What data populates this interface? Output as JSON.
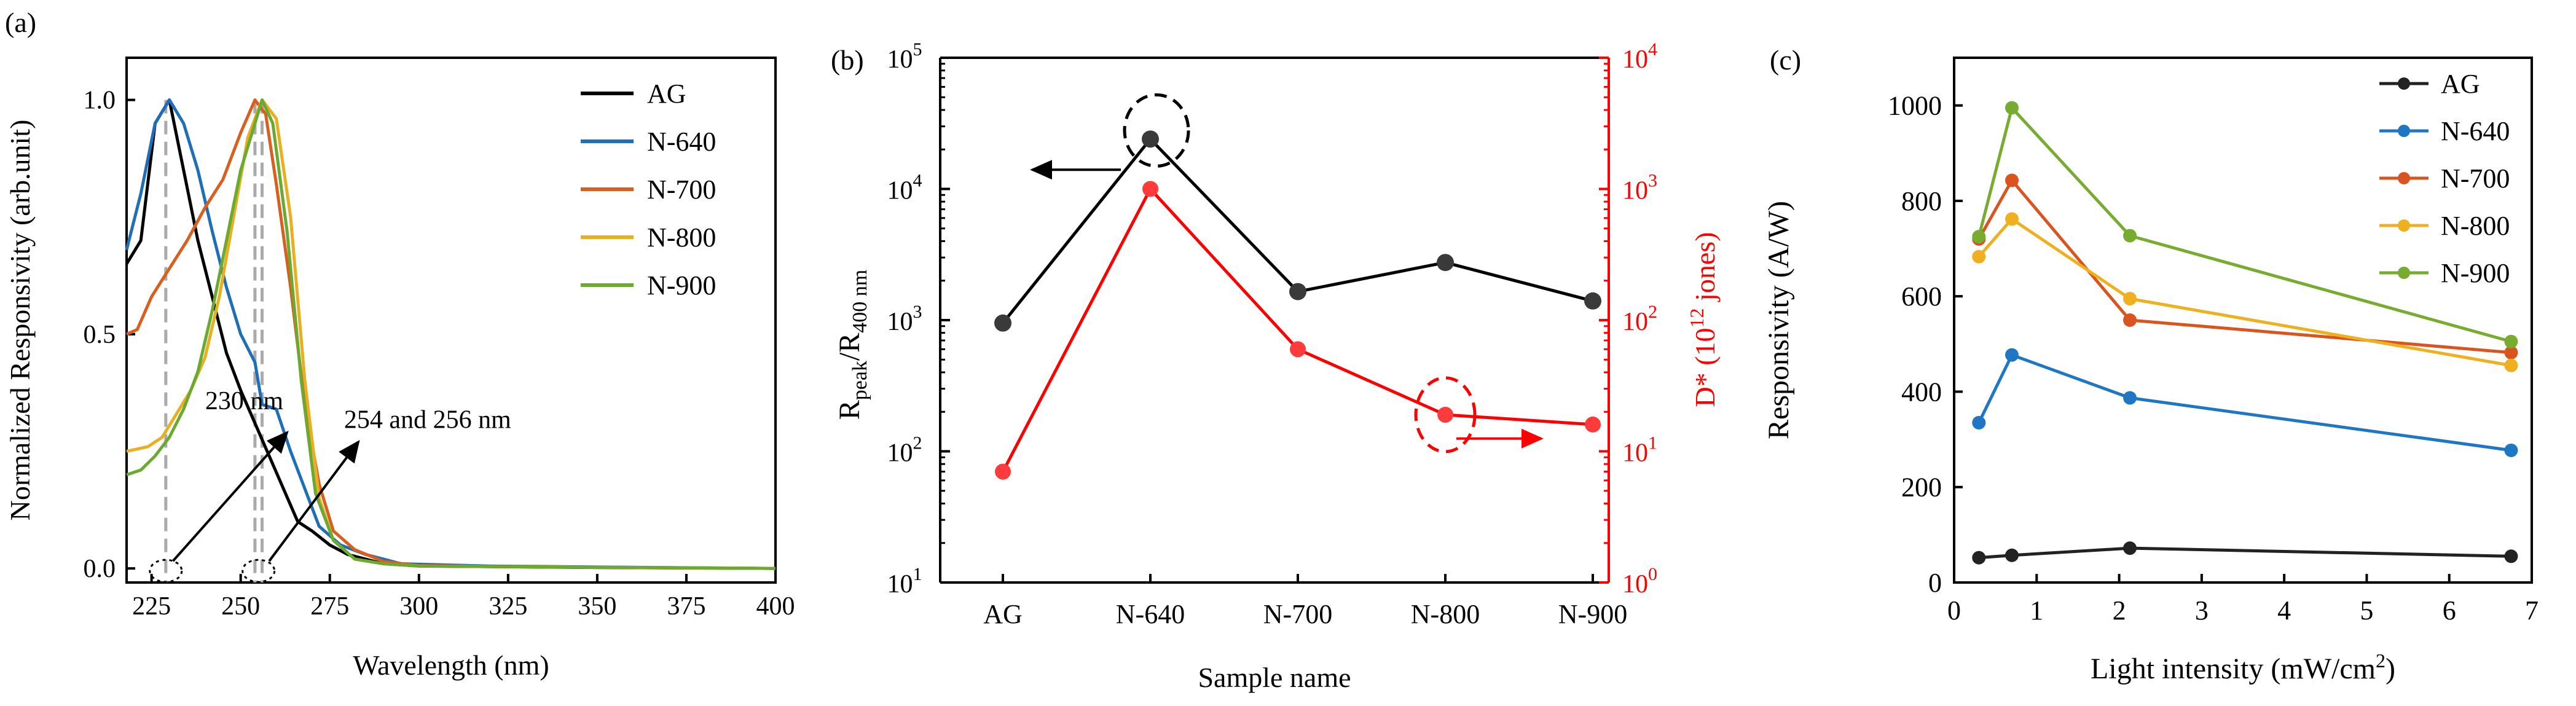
{
  "chart_data": [
    {
      "panel": "(a)",
      "type": "line",
      "xlabel": "Wavelength (nm)",
      "ylabel": "Normalized Responsivity (arb.unit)",
      "xlim": [
        218,
        400
      ],
      "ylim": [
        -0.03,
        1.09
      ],
      "xticks": [
        225,
        250,
        275,
        300,
        325,
        350,
        375,
        400
      ],
      "yticks": [
        0.0,
        0.5,
        1.0
      ],
      "ytick_labels": [
        "0.0",
        "0.5",
        "1.0"
      ],
      "legend_position": "top-right",
      "series": [
        {
          "name": "AG",
          "color": "#000000",
          "points": [
            [
              218,
              0.65
            ],
            [
              222,
              0.7
            ],
            [
              226,
              0.95
            ],
            [
              230,
              1.0
            ],
            [
              234,
              0.85
            ],
            [
              238,
              0.7
            ],
            [
              242,
              0.58
            ],
            [
              246,
              0.46
            ],
            [
              250,
              0.38
            ],
            [
              254,
              0.31
            ],
            [
              258,
              0.24
            ],
            [
              262,
              0.17
            ],
            [
              266,
              0.1
            ],
            [
              270,
              0.08
            ],
            [
              275,
              0.05
            ],
            [
              280,
              0.03
            ],
            [
              290,
              0.01
            ],
            [
              300,
              0.005
            ],
            [
              350,
              0.002
            ],
            [
              400,
              0.0
            ]
          ]
        },
        {
          "name": "N-640",
          "color": "#1f6fb8",
          "points": [
            [
              218,
              0.68
            ],
            [
              222,
              0.8
            ],
            [
              226,
              0.95
            ],
            [
              230,
              1.0
            ],
            [
              234,
              0.95
            ],
            [
              238,
              0.85
            ],
            [
              242,
              0.72
            ],
            [
              246,
              0.6
            ],
            [
              250,
              0.5
            ],
            [
              254,
              0.44
            ],
            [
              256,
              0.35
            ],
            [
              260,
              0.34
            ],
            [
              264,
              0.25
            ],
            [
              268,
              0.17
            ],
            [
              272,
              0.09
            ],
            [
              278,
              0.05
            ],
            [
              285,
              0.03
            ],
            [
              295,
              0.01
            ],
            [
              320,
              0.005
            ],
            [
              400,
              0.0
            ]
          ]
        },
        {
          "name": "N-700",
          "color": "#d95f1e",
          "points": [
            [
              218,
              0.5
            ],
            [
              221,
              0.51
            ],
            [
              225,
              0.58
            ],
            [
              230,
              0.64
            ],
            [
              235,
              0.7
            ],
            [
              240,
              0.77
            ],
            [
              245,
              0.83
            ],
            [
              250,
              0.93
            ],
            [
              254,
              1.0
            ],
            [
              257,
              0.97
            ],
            [
              260,
              0.82
            ],
            [
              264,
              0.6
            ],
            [
              268,
              0.35
            ],
            [
              272,
              0.18
            ],
            [
              276,
              0.08
            ],
            [
              282,
              0.04
            ],
            [
              290,
              0.015
            ],
            [
              300,
              0.006
            ],
            [
              350,
              0.002
            ],
            [
              400,
              0.0
            ]
          ]
        },
        {
          "name": "N-800",
          "color": "#e8b020",
          "points": [
            [
              218,
              0.25
            ],
            [
              224,
              0.26
            ],
            [
              228,
              0.28
            ],
            [
              232,
              0.33
            ],
            [
              236,
              0.38
            ],
            [
              240,
              0.45
            ],
            [
              244,
              0.58
            ],
            [
              248,
              0.75
            ],
            [
              252,
              0.92
            ],
            [
              256,
              1.0
            ],
            [
              260,
              0.96
            ],
            [
              264,
              0.75
            ],
            [
              268,
              0.4
            ],
            [
              272,
              0.15
            ],
            [
              276,
              0.06
            ],
            [
              282,
              0.02
            ],
            [
              290,
              0.01
            ],
            [
              300,
              0.005
            ],
            [
              400,
              0.0
            ]
          ]
        },
        {
          "name": "N-900",
          "color": "#6aaa30",
          "points": [
            [
              218,
              0.2
            ],
            [
              222,
              0.21
            ],
            [
              226,
              0.24
            ],
            [
              230,
              0.28
            ],
            [
              234,
              0.34
            ],
            [
              238,
              0.42
            ],
            [
              242,
              0.55
            ],
            [
              246,
              0.7
            ],
            [
              250,
              0.85
            ],
            [
              254,
              0.95
            ],
            [
              256,
              1.0
            ],
            [
              259,
              0.95
            ],
            [
              263,
              0.72
            ],
            [
              267,
              0.4
            ],
            [
              271,
              0.16
            ],
            [
              276,
              0.06
            ],
            [
              282,
              0.02
            ],
            [
              290,
              0.01
            ],
            [
              300,
              0.005
            ],
            [
              400,
              0.0
            ]
          ]
        }
      ],
      "guide_lines_nm": [
        229,
        254,
        256
      ],
      "annotations": [
        "230 nm",
        "254 and 256 nm"
      ]
    },
    {
      "panel": "(b)",
      "type": "line",
      "xlabel": "Sample name",
      "ylabel_left_main": "R",
      "ylabel_left_sub1": "peak",
      "ylabel_left_mid": "/R",
      "ylabel_left_sub2": "400 nm",
      "ylabel_right_main": "D* (10",
      "ylabel_right_sup": "12",
      "ylabel_right_end": " jones)",
      "categories": [
        "AG",
        "N-640",
        "N-700",
        "N-800",
        "N-900"
      ],
      "left_axis": {
        "scale": "log",
        "ylim": [
          10,
          100000
        ],
        "ticks": [
          {
            "base": "10",
            "exp": "1"
          },
          {
            "base": "10",
            "exp": "2"
          },
          {
            "base": "10",
            "exp": "3"
          },
          {
            "base": "10",
            "exp": "4"
          },
          {
            "base": "10",
            "exp": "5"
          }
        ]
      },
      "right_axis": {
        "scale": "log",
        "ylim": [
          1,
          10000
        ],
        "color": "#ff0000",
        "ticks": [
          {
            "base": "10",
            "exp": "0"
          },
          {
            "base": "10",
            "exp": "1"
          },
          {
            "base": "10",
            "exp": "2"
          },
          {
            "base": "10",
            "exp": "3"
          },
          {
            "base": "10",
            "exp": "4"
          }
        ]
      },
      "series": [
        {
          "name": "Rpeak/R400nm",
          "axis": "left",
          "color": "#000000",
          "values": [
            950,
            24000,
            1650,
            2750,
            1400
          ]
        },
        {
          "name": "D*",
          "axis": "right",
          "color": "#ff0000",
          "values": [
            7,
            1000,
            60,
            19,
            16
          ]
        }
      ]
    },
    {
      "panel": "(c)",
      "type": "line",
      "xlabel_main": "Light intensity (mW/cm",
      "xlabel_sup": "2",
      "xlabel_end": ")",
      "ylabel": "Responsivity (A/W)",
      "xlim": [
        0,
        7
      ],
      "ylim": [
        0,
        1100
      ],
      "xticks": [
        0,
        1,
        2,
        3,
        4,
        5,
        6,
        7
      ],
      "yticks": [
        0,
        200,
        400,
        600,
        800,
        1000
      ],
      "legend_position": "top-right",
      "x": [
        0.3,
        0.7,
        2.13,
        6.75
      ],
      "series": [
        {
          "name": "AG",
          "color": "#222222",
          "values": [
            52,
            57,
            72,
            55
          ]
        },
        {
          "name": "N-640",
          "color": "#1f77c4",
          "values": [
            335,
            477,
            387,
            277
          ]
        },
        {
          "name": "N-700",
          "color": "#d9541e",
          "values": [
            720,
            843,
            550,
            482
          ]
        },
        {
          "name": "N-800",
          "color": "#efb020",
          "values": [
            683,
            762,
            595,
            455
          ]
        },
        {
          "name": "N-900",
          "color": "#77ac30",
          "values": [
            725,
            995,
            727,
            505
          ]
        }
      ]
    }
  ]
}
